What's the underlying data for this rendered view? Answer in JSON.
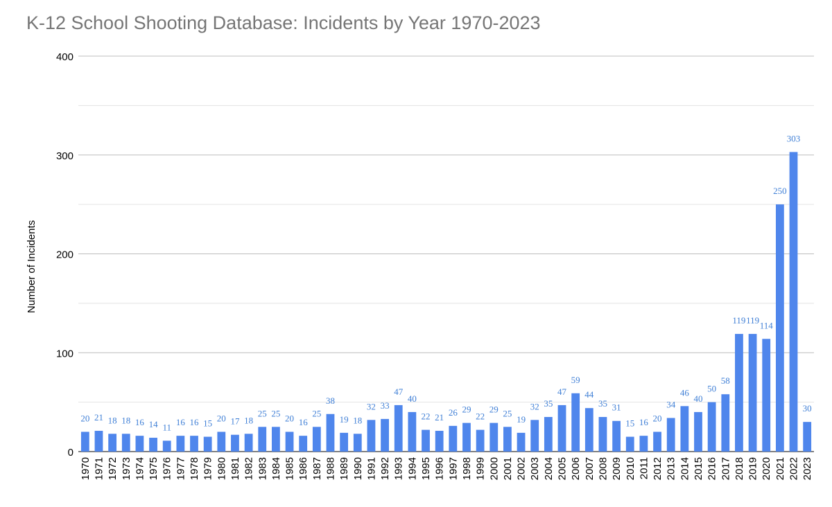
{
  "chart_data": {
    "type": "bar",
    "title": "K-12 School Shooting Database: Incidents by Year 1970-2023",
    "xlabel": "",
    "ylabel": "Number of Incidents",
    "ylim": [
      0,
      400
    ],
    "yticks": [
      0,
      100,
      200,
      300,
      400
    ],
    "grid": true,
    "bar_color": "#4f86ec",
    "label_color": "#3f7fd6",
    "categories": [
      "1970",
      "1971",
      "1972",
      "1973",
      "1974",
      "1975",
      "1976",
      "1977",
      "1978",
      "1979",
      "1980",
      "1981",
      "1982",
      "1983",
      "1984",
      "1985",
      "1986",
      "1987",
      "1988",
      "1989",
      "1990",
      "1991",
      "1992",
      "1993",
      "1994",
      "1995",
      "1996",
      "1997",
      "1998",
      "1999",
      "2000",
      "2001",
      "2002",
      "2003",
      "2004",
      "2005",
      "2006",
      "2007",
      "2008",
      "2009",
      "2010",
      "2011",
      "2012",
      "2013",
      "2014",
      "2015",
      "2016",
      "2017",
      "2018",
      "2019",
      "2020",
      "2021",
      "2022",
      "2023"
    ],
    "values": [
      20,
      21,
      18,
      18,
      16,
      14,
      11,
      16,
      16,
      15,
      20,
      17,
      18,
      25,
      25,
      20,
      16,
      25,
      38,
      19,
      18,
      32,
      33,
      47,
      40,
      22,
      21,
      26,
      29,
      22,
      29,
      25,
      19,
      32,
      35,
      47,
      59,
      44,
      35,
      31,
      15,
      16,
      20,
      34,
      46,
      40,
      50,
      58,
      119,
      119,
      114,
      250,
      303,
      30
    ]
  }
}
